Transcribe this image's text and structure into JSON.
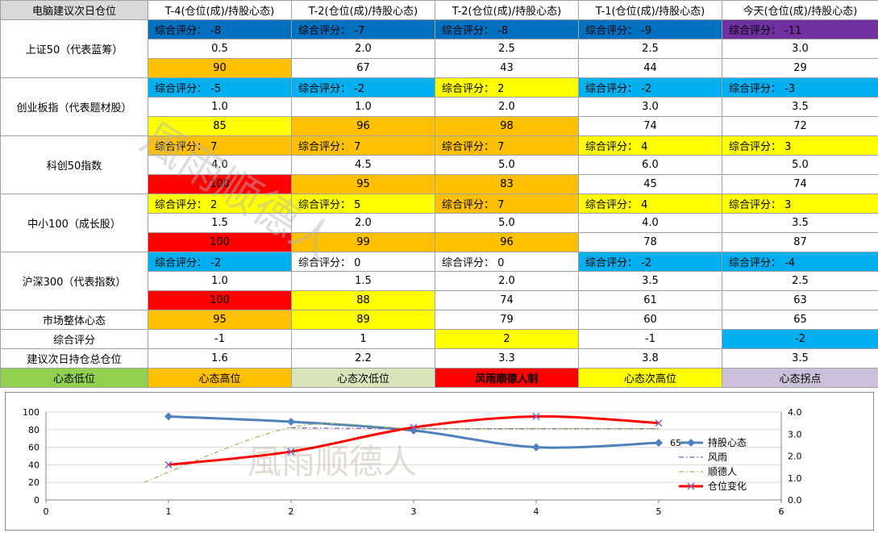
{
  "table": {
    "header": {
      "corner": "电脑建议次日仓位",
      "columns": [
        "T-4(仓位(成)/持股心态)",
        "T-2(仓位(成)/持股心态)",
        "T-2(仓位(成)/持股心态)",
        "T-1(仓位(成)/持股心态)",
        "今天(仓位(成)/持股心态)"
      ]
    },
    "indices": [
      {
        "name": "上证50（代表蓝筹）",
        "scores": [
          "综合评分： -8",
          "综合评分： -7",
          "综合评分： -8",
          "综合评分： -9",
          "综合评分： -11"
        ],
        "score_colors": [
          "#0070c0",
          "#0070c0",
          "#0070c0",
          "#0070c0",
          "#7030a0"
        ],
        "positions": [
          "0.5",
          "2.0",
          "2.5",
          "2.5",
          "3.0"
        ],
        "sentiments": [
          "90",
          "67",
          "43",
          "44",
          "29"
        ],
        "sentiment_colors": [
          "#ffc000",
          "#ffffff",
          "#ffffff",
          "#ffffff",
          "#ffffff"
        ]
      },
      {
        "name": "创业板指（代表题材股）",
        "scores": [
          "综合评分： -5",
          "综合评分： -2",
          "综合评分： 2",
          "综合评分： -2",
          "综合评分： -3"
        ],
        "score_colors": [
          "#00b0f0",
          "#00b0f0",
          "#ffff00",
          "#00b0f0",
          "#00b0f0"
        ],
        "positions": [
          "1.0",
          "1.0",
          "2.0",
          "3.0",
          "3.5"
        ],
        "sentiments": [
          "85",
          "96",
          "98",
          "74",
          "72"
        ],
        "sentiment_colors": [
          "#ffff00",
          "#ffc000",
          "#ffc000",
          "#ffffff",
          "#ffffff"
        ]
      },
      {
        "name": "科创50指数",
        "scores": [
          "综合评分： 7",
          "综合评分： 7",
          "综合评分： 7",
          "综合评分： 4",
          "综合评分： 3"
        ],
        "score_colors": [
          "#ffc000",
          "#ffc000",
          "#ffc000",
          "#ffff00",
          "#ffff00"
        ],
        "positions": [
          "4.0",
          "4.5",
          "5.0",
          "6.0",
          "5.0"
        ],
        "sentiments": [
          "100",
          "95",
          "83",
          "45",
          "74"
        ],
        "sentiment_colors": [
          "#ff0000",
          "#ffc000",
          "#ffc000",
          "#ffffff",
          "#ffffff"
        ]
      },
      {
        "name": "中小100（成长股）",
        "scores": [
          "综合评分： 2",
          "综合评分： 5",
          "综合评分： 7",
          "综合评分： 4",
          "综合评分： 3"
        ],
        "score_colors": [
          "#ffff00",
          "#ffff00",
          "#ffc000",
          "#ffff00",
          "#ffff00"
        ],
        "positions": [
          "1.5",
          "2.0",
          "5.0",
          "4.0",
          "3.5"
        ],
        "sentiments": [
          "100",
          "99",
          "96",
          "78",
          "87"
        ],
        "sentiment_colors": [
          "#ff0000",
          "#ffc000",
          "#ffc000",
          "#ffffff",
          "#ffffff"
        ]
      },
      {
        "name": "沪深300（代表指数）",
        "scores": [
          "综合评分： -2",
          "综合评分： 0",
          "综合评分： 0",
          "综合评分： -2",
          "综合评分： -4"
        ],
        "score_colors": [
          "#00b0f0",
          "#ffffff",
          "#ffffff",
          "#00b0f0",
          "#00b0f0"
        ],
        "positions": [
          "1.0",
          "1.5",
          "2.0",
          "3.5",
          "2.5"
        ],
        "sentiments": [
          "100",
          "88",
          "74",
          "61",
          "63"
        ],
        "sentiment_colors": [
          "#ff0000",
          "#ffff00",
          "#ffffff",
          "#ffffff",
          "#ffffff"
        ]
      }
    ],
    "market_sentiment": {
      "label": "市场整体心态",
      "values": [
        "95",
        "89",
        "79",
        "60",
        "65"
      ],
      "colors": [
        "#ffc000",
        "#ffff00",
        "#ffffff",
        "#ffffff",
        "#ffffff"
      ]
    },
    "overall_score": {
      "label": "综合评分",
      "values": [
        "-1",
        "1",
        "2",
        "-1",
        "-2"
      ],
      "colors": [
        "#ffffff",
        "#ffffff",
        "#ffff00",
        "#ffffff",
        "#00b0f0"
      ]
    },
    "next_position": {
      "label": "建议次日持仓总仓位",
      "values": [
        "1.6",
        "2.2",
        "3.3",
        "3.8",
        "3.5"
      ]
    },
    "legend": [
      {
        "label": "心态低位",
        "color": "#92d050",
        "bold": false
      },
      {
        "label": "心态高位",
        "color": "#ffc000",
        "bold": false
      },
      {
        "label": "心态次低位",
        "color": "#d8e4bc",
        "bold": false
      },
      {
        "label": "风雨顺德人制",
        "color": "#ff0000",
        "bold": true
      },
      {
        "label": "心态次高位",
        "color": "#ffff00",
        "bold": false
      },
      {
        "label": "心态拐点",
        "color": "#ccc0da",
        "bold": false
      }
    ],
    "watermark_text": "風雨顺德人"
  },
  "chart_data": {
    "type": "line",
    "x": [
      1,
      2,
      3,
      4,
      5
    ],
    "xlim": [
      0,
      6
    ],
    "xticks": [
      "0",
      "1",
      "2",
      "3",
      "4",
      "5",
      "6"
    ],
    "ylim_left": [
      0,
      100
    ],
    "yticks_left": [
      "0",
      "20",
      "40",
      "60",
      "80",
      "100"
    ],
    "ylim_right": [
      0,
      4
    ],
    "yticks_right": [
      "0.0",
      "1.0",
      "2.0",
      "3.0",
      "4.0"
    ],
    "grid": true,
    "legend_position": "right",
    "series": [
      {
        "name": "持股心态",
        "axis": "left",
        "values": [
          95,
          89,
          79,
          60,
          65
        ],
        "color": "#4f81bd",
        "marker": "diamond",
        "style": "solid",
        "data_label_last": "65"
      },
      {
        "name": "风雨",
        "axis": "left",
        "values": [
          null,
          82,
          81,
          81,
          81
        ],
        "color": "#7f4f9f",
        "marker": "none",
        "style": "dashdot"
      },
      {
        "name": "顺德人",
        "axis": "right",
        "x": [
          0.8,
          2,
          3,
          4,
          5
        ],
        "values": [
          0.8,
          3.3,
          3.25,
          3.25,
          3.25
        ],
        "color": "#9bbb59",
        "marker": "none",
        "style": "dashdot"
      },
      {
        "name": "仓位变化",
        "axis": "right",
        "values": [
          1.6,
          2.2,
          3.3,
          3.8,
          3.5
        ],
        "color": "#ff0000",
        "marker": "x",
        "style": "solid"
      }
    ],
    "watermark_text": "風雨顺德人"
  }
}
